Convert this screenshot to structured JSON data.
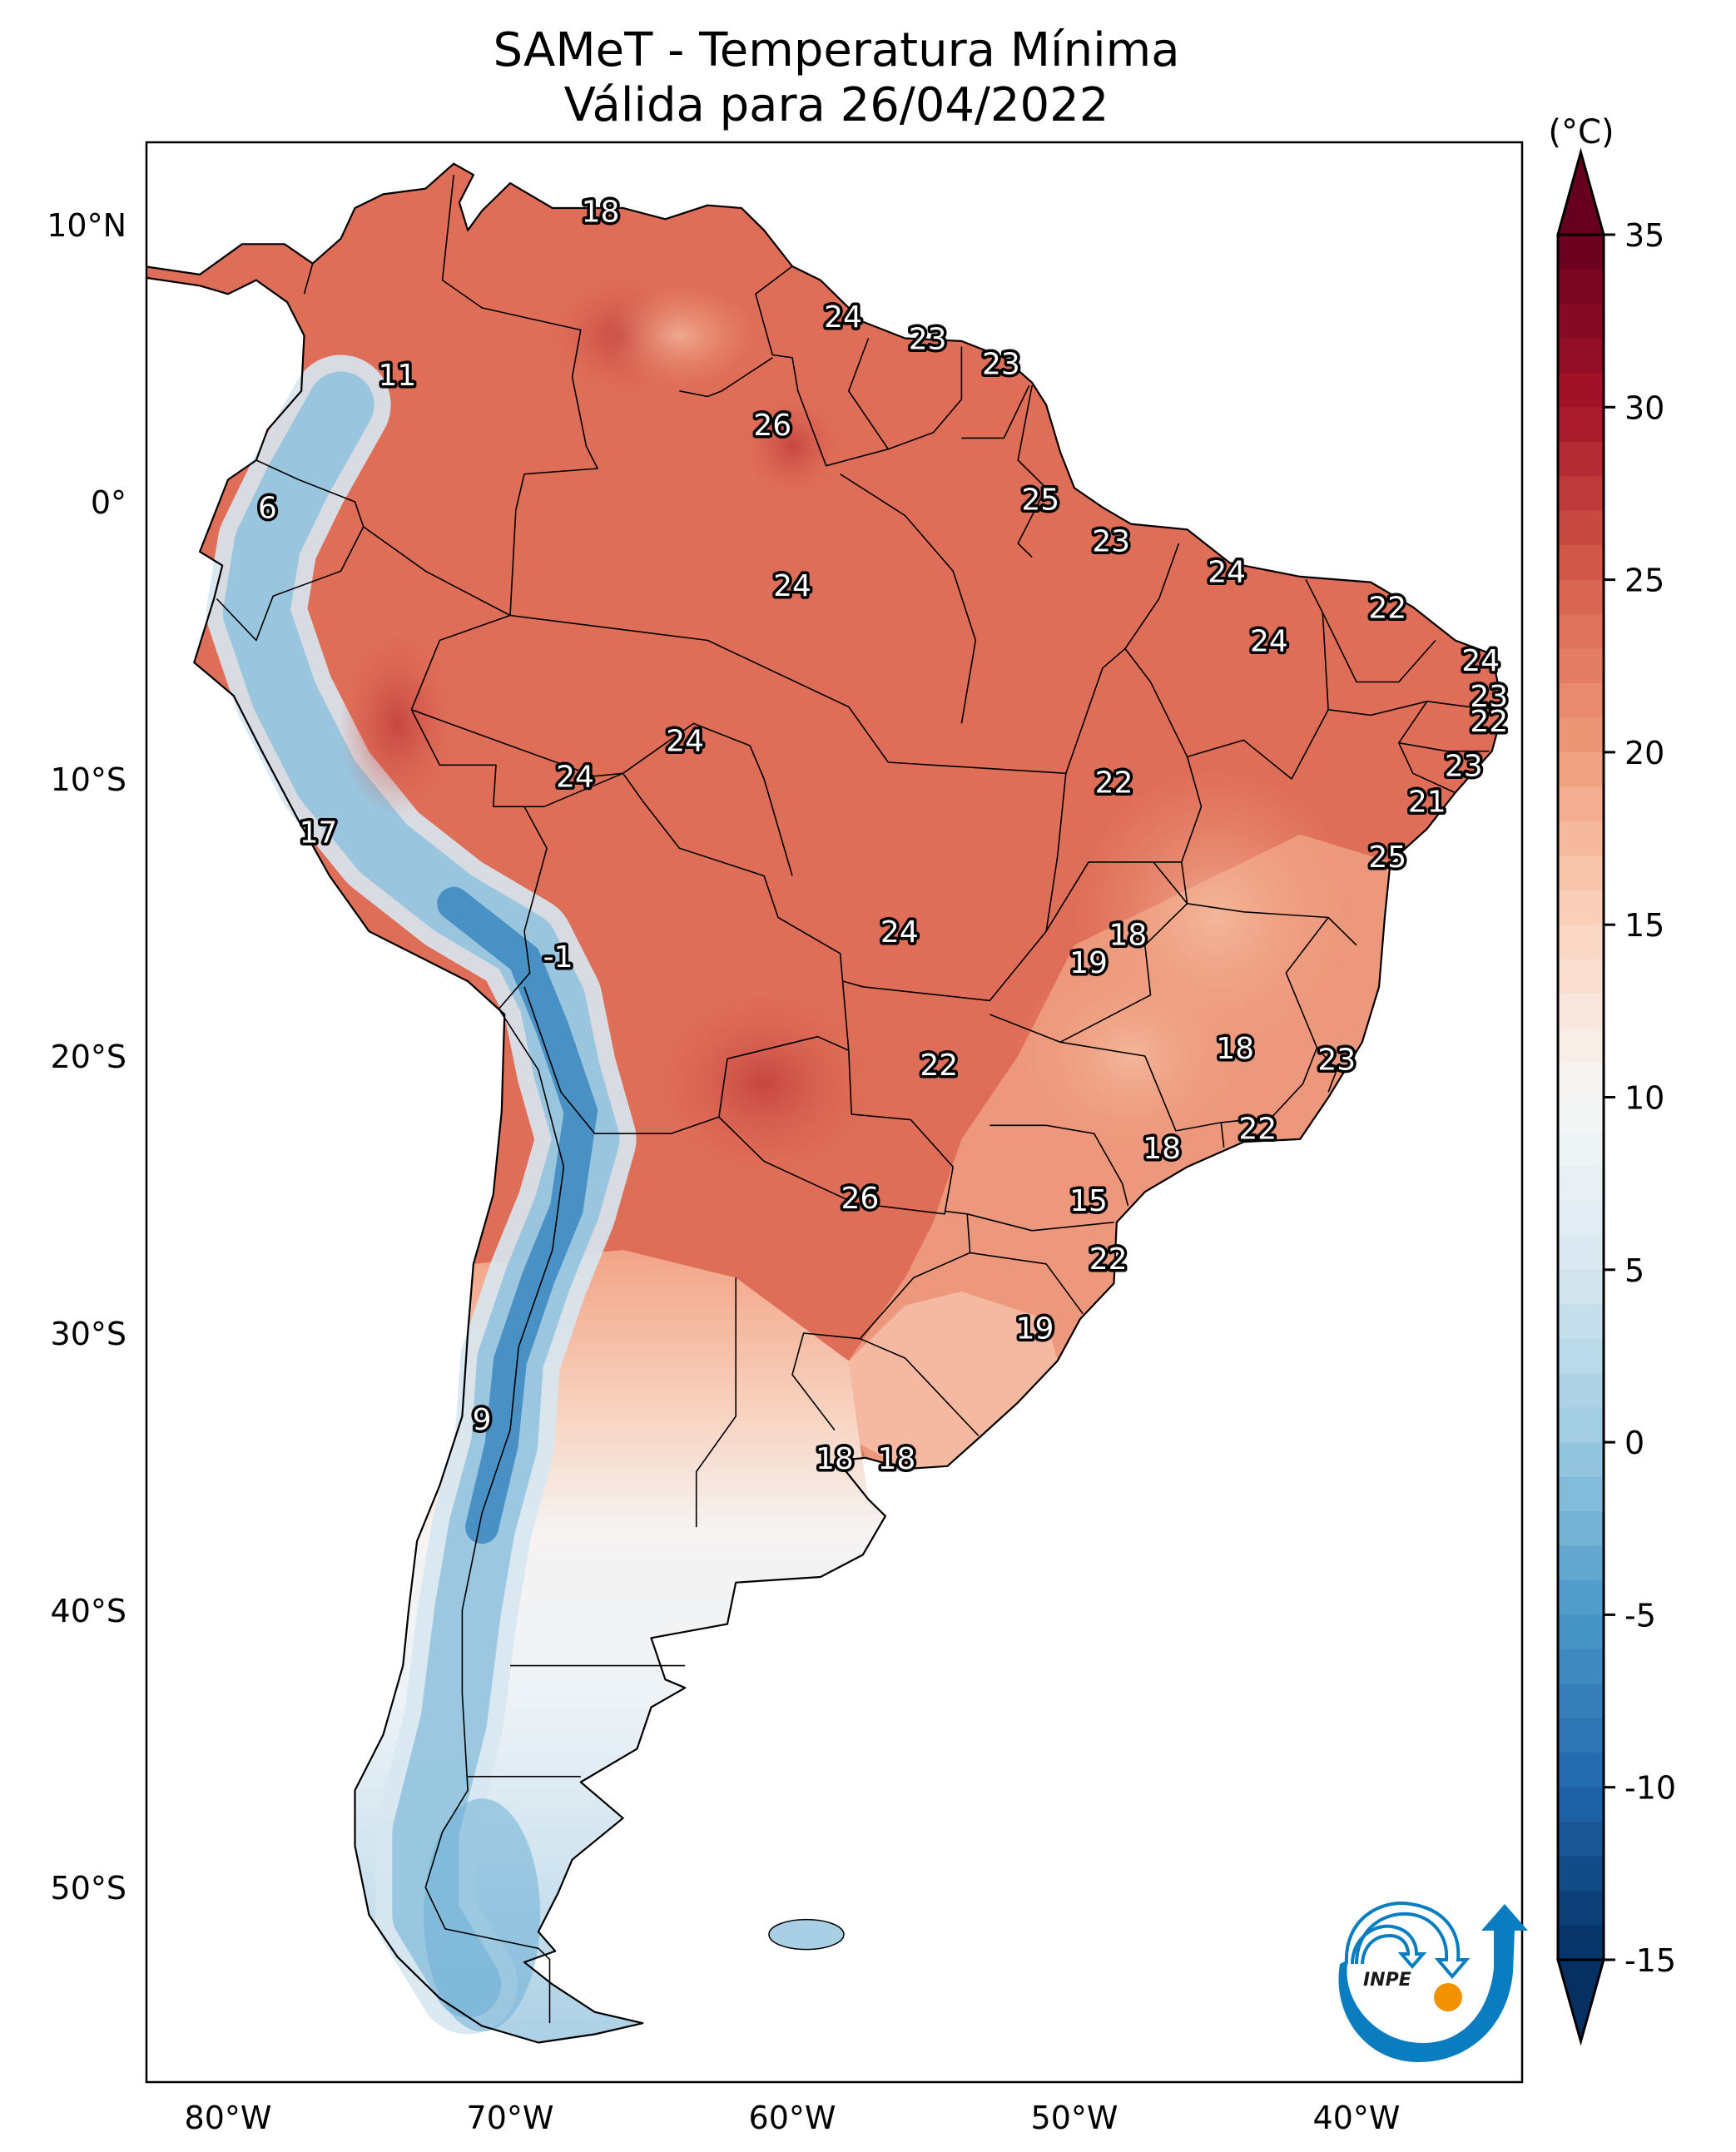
{
  "title": {
    "line1": "SAMeT - Temperatura Mínima",
    "line2": "Válida para 26/04/2022"
  },
  "chart_data": {
    "type": "heatmap",
    "title": "SAMeT - Temperatura Mínima\nVálida para 26/04/2022",
    "variable": "Minimum temperature",
    "units_label": "(°C)",
    "colormap": "RdBu_r",
    "colorbar": {
      "range": [
        -15,
        35
      ],
      "extend": "both",
      "ticks": [
        35,
        30,
        25,
        20,
        15,
        10,
        5,
        0,
        -5,
        -10,
        -15
      ],
      "tick_labels": [
        "35",
        "30",
        "25",
        "20",
        "15",
        "10",
        "5",
        "0",
        "-5",
        "-10",
        "-15"
      ],
      "colors": {
        "35": "#67001f",
        "30": "#a51429",
        "25": "#d6604d",
        "20": "#f09c7b",
        "15": "#fbd5c0",
        "10": "#f7f7f7",
        "5": "#d8e8f1",
        "0": "#9ccae1",
        "-5": "#4a98c9",
        "-10": "#2166ac",
        "-15": "#053061"
      }
    },
    "extent": {
      "lon": [
        -83,
        -33
      ],
      "lat": [
        -56.7,
        13
      ]
    },
    "x_ticks": [
      {
        "value": -80,
        "label": "80°W"
      },
      {
        "value": -70,
        "label": "70°W"
      },
      {
        "value": -60,
        "label": "60°W"
      },
      {
        "value": -50,
        "label": "50°W"
      },
      {
        "value": -40,
        "label": "40°W"
      }
    ],
    "y_ticks": [
      {
        "value": 10,
        "label": "10°N"
      },
      {
        "value": 0,
        "label": "0°"
      },
      {
        "value": -10,
        "label": "10°S"
      },
      {
        "value": -20,
        "label": "20°S"
      },
      {
        "value": -30,
        "label": "30°S"
      },
      {
        "value": -40,
        "label": "40°S"
      },
      {
        "value": -50,
        "label": "50°S"
      }
    ],
    "grid": false,
    "station_labels": [
      {
        "lon": -66.8,
        "lat": 10.5,
        "value": "18"
      },
      {
        "lon": -58.2,
        "lat": 6.7,
        "value": "24"
      },
      {
        "lon": -55.2,
        "lat": 5.9,
        "value": "23"
      },
      {
        "lon": -52.6,
        "lat": 5.0,
        "value": "23"
      },
      {
        "lon": -74.0,
        "lat": 4.6,
        "value": "11"
      },
      {
        "lon": -60.7,
        "lat": 2.8,
        "value": "26"
      },
      {
        "lon": -78.6,
        "lat": -0.2,
        "value": "6"
      },
      {
        "lon": -51.2,
        "lat": 0.1,
        "value": "25"
      },
      {
        "lon": -48.7,
        "lat": -1.4,
        "value": "23"
      },
      {
        "lon": -44.6,
        "lat": -2.5,
        "value": "24"
      },
      {
        "lon": -60.0,
        "lat": -3.0,
        "value": "24"
      },
      {
        "lon": -38.9,
        "lat": -3.8,
        "value": "22"
      },
      {
        "lon": -43.1,
        "lat": -5.0,
        "value": "24"
      },
      {
        "lon": -35.6,
        "lat": -5.7,
        "value": "24"
      },
      {
        "lon": -35.3,
        "lat": -7.0,
        "value": "23"
      },
      {
        "lon": -35.3,
        "lat": -7.9,
        "value": "22"
      },
      {
        "lon": -63.8,
        "lat": -8.6,
        "value": "24"
      },
      {
        "lon": -36.2,
        "lat": -9.5,
        "value": "23"
      },
      {
        "lon": -67.7,
        "lat": -9.9,
        "value": "24"
      },
      {
        "lon": -48.6,
        "lat": -10.1,
        "value": "22"
      },
      {
        "lon": -37.5,
        "lat": -10.8,
        "value": "21"
      },
      {
        "lon": -76.8,
        "lat": -11.9,
        "value": "17"
      },
      {
        "lon": -38.9,
        "lat": -12.8,
        "value": "25"
      },
      {
        "lon": -56.2,
        "lat": -15.5,
        "value": "24"
      },
      {
        "lon": -48.1,
        "lat": -15.6,
        "value": "18"
      },
      {
        "lon": -68.3,
        "lat": -16.4,
        "value": "-1"
      },
      {
        "lon": -49.5,
        "lat": -16.6,
        "value": "19"
      },
      {
        "lon": -44.3,
        "lat": -19.7,
        "value": "18"
      },
      {
        "lon": -40.7,
        "lat": -20.1,
        "value": "23"
      },
      {
        "lon": -54.8,
        "lat": -20.3,
        "value": "22"
      },
      {
        "lon": -43.5,
        "lat": -22.6,
        "value": "22"
      },
      {
        "lon": -46.9,
        "lat": -23.3,
        "value": "18"
      },
      {
        "lon": -57.6,
        "lat": -25.1,
        "value": "26"
      },
      {
        "lon": -49.5,
        "lat": -25.2,
        "value": "15"
      },
      {
        "lon": -48.8,
        "lat": -27.3,
        "value": "22"
      },
      {
        "lon": -51.4,
        "lat": -29.8,
        "value": "19"
      },
      {
        "lon": -71.0,
        "lat": -33.1,
        "value": "9"
      },
      {
        "lon": -58.5,
        "lat": -34.5,
        "value": "18"
      },
      {
        "lon": -56.3,
        "lat": -34.5,
        "value": "18"
      }
    ]
  },
  "logo": {
    "text": "INPE",
    "colors": {
      "blue": "#0a7dc1",
      "orange": "#f39200"
    }
  }
}
